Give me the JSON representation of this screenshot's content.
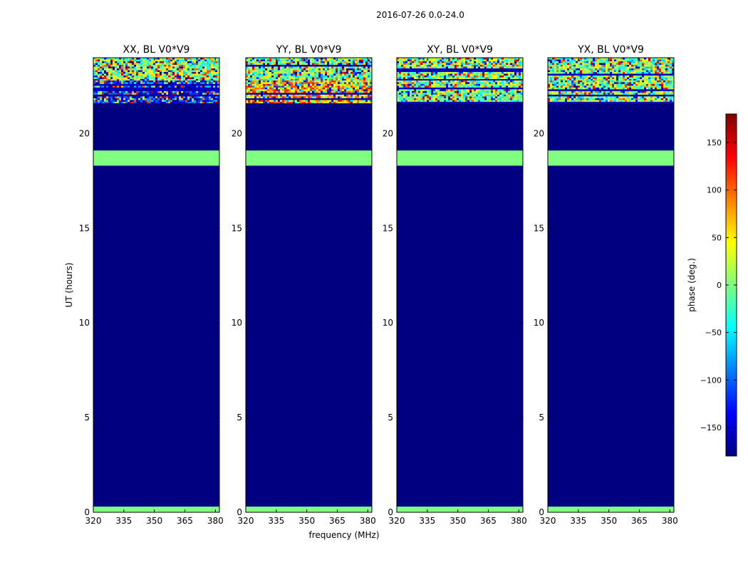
{
  "figure": {
    "suptitle": "2016-07-26 0.0-24.0",
    "xlabel": "frequency (MHz)",
    "ylabel": "UT (hours)"
  },
  "colorbar": {
    "label": "phase (deg.)",
    "range": [
      -180,
      180
    ],
    "ticks": [
      -150,
      -100,
      -50,
      0,
      50,
      100,
      150
    ],
    "colormap": "jet",
    "stops": [
      "#00007f",
      "#0000ff",
      "#007fff",
      "#00ffff",
      "#7fff7f",
      "#ffff00",
      "#ff7f00",
      "#ff0000",
      "#7f0000"
    ]
  },
  "chart_data": [
    {
      "type": "heatmap",
      "title": "XX, BL V0*V9",
      "xlim": [
        320,
        382
      ],
      "ylim": [
        0,
        24
      ],
      "xticks": [
        320,
        335,
        350,
        365,
        380
      ],
      "yticks": [
        0,
        5,
        10,
        15,
        20
      ],
      "background_phase_deg": -180,
      "bands": [
        {
          "t_start": 0.0,
          "t_end": 0.3,
          "phase_deg": 0,
          "texture": "flat"
        },
        {
          "t_start": 18.3,
          "t_end": 19.1,
          "phase_deg": 0,
          "texture": "flat"
        },
        {
          "t_start": 21.6,
          "t_end": 22.8,
          "phase_deg": -130,
          "texture": "noisy"
        },
        {
          "t_start": 22.8,
          "t_end": 24.0,
          "phase_deg": 0,
          "texture": "noisy"
        }
      ]
    },
    {
      "type": "heatmap",
      "title": "YY, BL V0*V9",
      "xlim": [
        320,
        382
      ],
      "ylim": [
        0,
        24
      ],
      "xticks": [
        320,
        335,
        350,
        365,
        380
      ],
      "yticks": [
        0,
        5,
        10,
        15,
        20
      ],
      "background_phase_deg": -180,
      "bands": [
        {
          "t_start": 0.0,
          "t_end": 0.3,
          "phase_deg": 0,
          "texture": "flat"
        },
        {
          "t_start": 18.3,
          "t_end": 19.1,
          "phase_deg": 0,
          "texture": "flat"
        },
        {
          "t_start": 21.6,
          "t_end": 22.8,
          "phase_deg": 70,
          "texture": "noisy"
        },
        {
          "t_start": 22.8,
          "t_end": 24.0,
          "phase_deg": 0,
          "texture": "noisy"
        }
      ]
    },
    {
      "type": "heatmap",
      "title": "XY, BL V0*V9",
      "xlim": [
        320,
        382
      ],
      "ylim": [
        0,
        24
      ],
      "xticks": [
        320,
        335,
        350,
        365,
        380
      ],
      "yticks": [
        0,
        5,
        10,
        15,
        20
      ],
      "background_phase_deg": -180,
      "bands": [
        {
          "t_start": 0.0,
          "t_end": 0.3,
          "phase_deg": 0,
          "texture": "flat"
        },
        {
          "t_start": 18.3,
          "t_end": 19.1,
          "phase_deg": 0,
          "texture": "flat"
        },
        {
          "t_start": 21.6,
          "t_end": 22.8,
          "phase_deg": 0,
          "texture": "noisy"
        },
        {
          "t_start": 22.8,
          "t_end": 24.0,
          "phase_deg": 0,
          "texture": "noisy"
        }
      ]
    },
    {
      "type": "heatmap",
      "title": "YX, BL V0*V9",
      "xlim": [
        320,
        382
      ],
      "ylim": [
        0,
        24
      ],
      "xticks": [
        320,
        335,
        350,
        365,
        380
      ],
      "yticks": [
        0,
        5,
        10,
        15,
        20
      ],
      "background_phase_deg": -180,
      "bands": [
        {
          "t_start": 0.0,
          "t_end": 0.3,
          "phase_deg": 0,
          "texture": "flat"
        },
        {
          "t_start": 18.3,
          "t_end": 19.1,
          "phase_deg": 0,
          "texture": "flat"
        },
        {
          "t_start": 21.6,
          "t_end": 22.8,
          "phase_deg": 0,
          "texture": "noisy"
        },
        {
          "t_start": 22.8,
          "t_end": 24.0,
          "phase_deg": 0,
          "texture": "noisy"
        }
      ]
    }
  ]
}
